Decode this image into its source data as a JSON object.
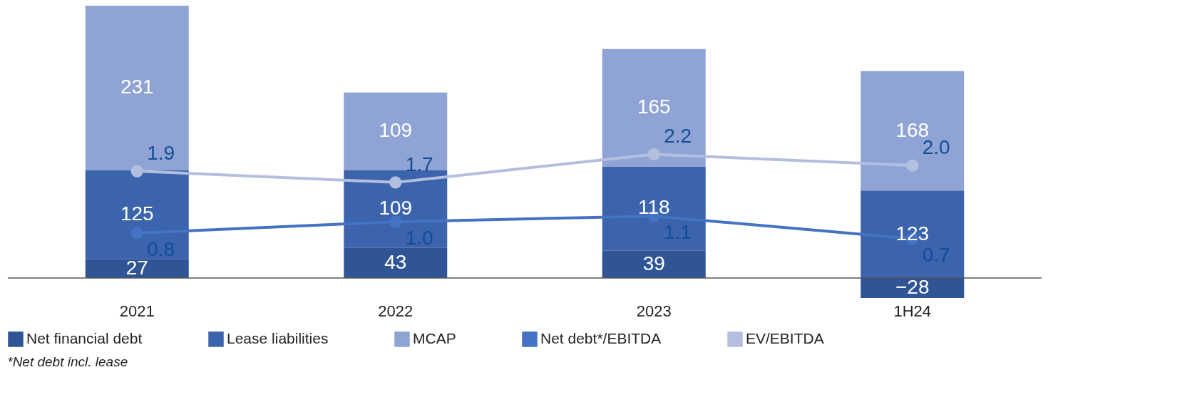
{
  "chart_data": {
    "type": "bar",
    "stacked": true,
    "categories": [
      "2021",
      "2022",
      "2023",
      "1H24"
    ],
    "series": [
      {
        "name": "Net financial debt",
        "color": "#2f5597",
        "values": [
          27,
          43,
          39,
          -28
        ]
      },
      {
        "name": "Lease liabilities",
        "color": "#3c64ad",
        "values": [
          125,
          109,
          118,
          123
        ]
      },
      {
        "name": "MCAP",
        "color": "#8fa3d4",
        "values": [
          231,
          109,
          165,
          168
        ]
      },
      {
        "name": "Net debt*/EBITDA",
        "color": "#4472c4",
        "type": "line",
        "axis": "y2",
        "marker": "circle",
        "values": [
          0.8,
          1.0,
          1.1,
          0.7
        ],
        "value_labels": [
          "0.8",
          "1.0",
          "1.1",
          "0.7"
        ]
      },
      {
        "name": "EV/EBITDA",
        "color": "#b4bfe0",
        "type": "line",
        "axis": "y2",
        "marker": "circle",
        "values": [
          1.9,
          1.7,
          2.2,
          2.0
        ],
        "value_labels": [
          "1.9",
          "1.7",
          "2.2",
          "2.0"
        ]
      }
    ],
    "tick_labels": "x",
    "data_labels": true,
    "grid": false,
    "legend": "bottom",
    "annotations": [
      "*Net debt incl. lease"
    ]
  }
}
